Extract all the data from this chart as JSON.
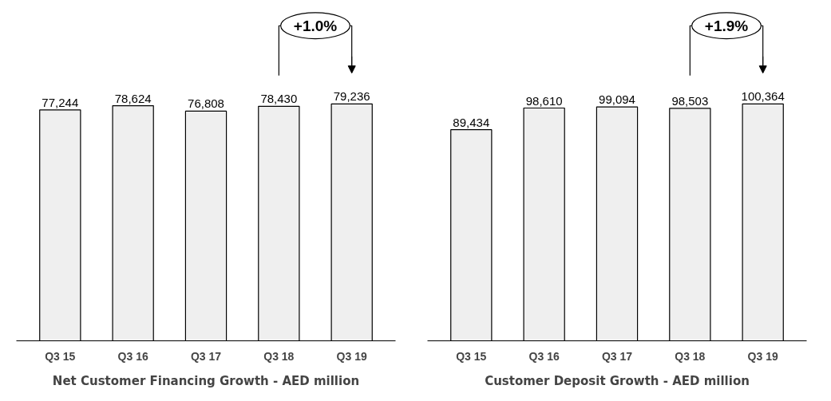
{
  "chart_data": [
    {
      "type": "bar",
      "title": "Net Customer Financing Growth - AED million",
      "categories": [
        "Q3 15",
        "Q3 16",
        "Q3 17",
        "Q3 18",
        "Q3 19"
      ],
      "values": [
        77244,
        78624,
        76808,
        78430,
        79236
      ],
      "value_labels": [
        "77,244",
        "78,624",
        "76,808",
        "78,430",
        "79,236"
      ],
      "color": "#efefef",
      "annotations": [
        "+1.0%"
      ]
    },
    {
      "type": "bar",
      "title": "Customer Deposit Growth - AED million",
      "categories": [
        "Q3 15",
        "Q3 16",
        "Q3 17",
        "Q3 18",
        "Q3 19"
      ],
      "values": [
        89434,
        98610,
        99094,
        98503,
        100364
      ],
      "value_labels": [
        "89,434",
        "98,610",
        "99,094",
        "98,503",
        "100,364"
      ],
      "color": "#efefef",
      "annotations": [
        "+1.9%"
      ]
    }
  ]
}
